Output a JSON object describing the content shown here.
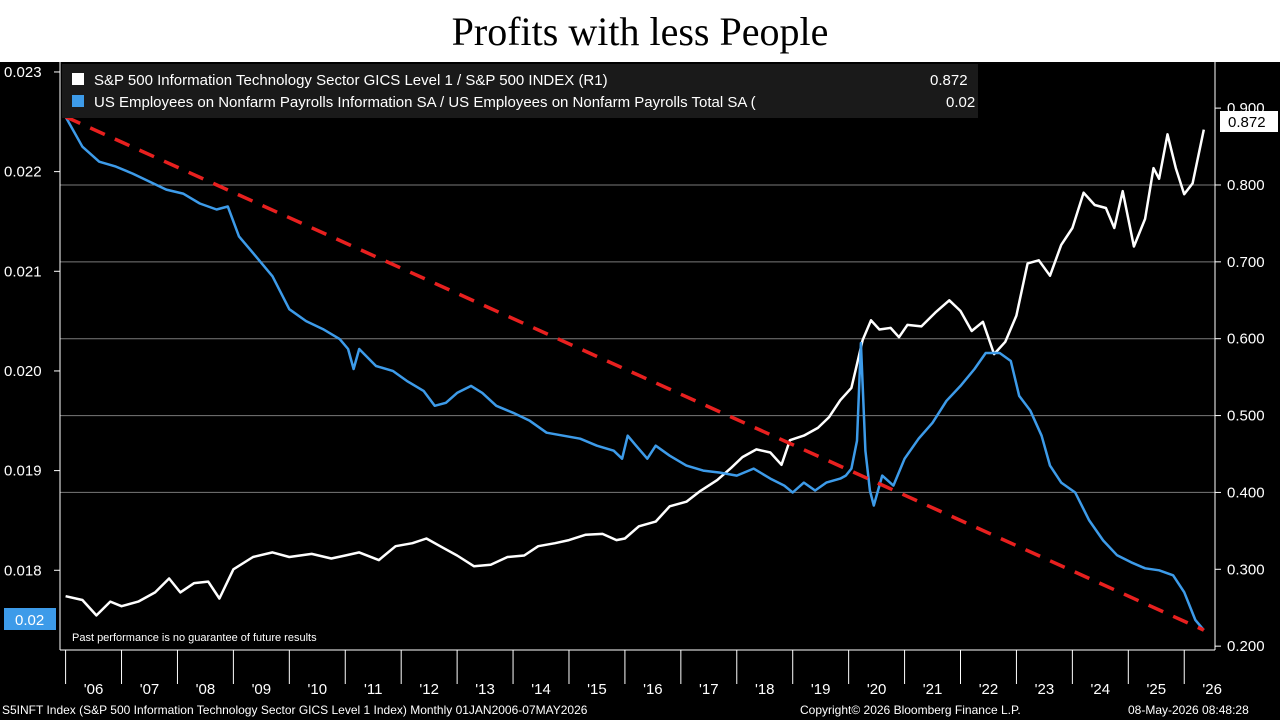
{
  "title": "Profits with less People",
  "colors": {
    "white_series": "#ffffff",
    "blue_series": "#3d9be9",
    "trend": "#e8201f",
    "grid": "#7a7a7a"
  },
  "legend": [
    {
      "label": "S&P 500 Information Technology Sector GICS Level 1 / S&P 500 INDEX (R1)",
      "value": "0.872"
    },
    {
      "label": "US Employees on Nonfarm Payrolls Information SA / US Employees on Nonfarm Payrolls Total SA (",
      "value": "0.02"
    }
  ],
  "left_tag": "0.02",
  "right_tag": "0.872",
  "note": "Past performance is no guarantee of future results",
  "footer": {
    "left": "S5INFT Index (S&P 500 Information Technology Sector GICS Level 1 Index) Monthly 01JAN2006-07MAY2026",
    "center": "Copyright© 2026 Bloomberg Finance L.P.",
    "right": "08-May-2026 08:48:28"
  },
  "chart_data": {
    "type": "line",
    "x_tick_labels": [
      "'06",
      "'07",
      "'08",
      "'09",
      "'10",
      "'11",
      "'12",
      "'13",
      "'14",
      "'15",
      "'16",
      "'17",
      "'18",
      "'19",
      "'20",
      "'21",
      "'22",
      "'23",
      "'24",
      "'25",
      "'26"
    ],
    "left_axis": {
      "ylim": [
        0.0172,
        0.0231
      ],
      "tick_labels": [
        "0.023",
        "0.022",
        "0.021",
        "0.020",
        "0.019",
        "0.018"
      ]
    },
    "right_axis": {
      "ylim": [
        0.195,
        0.96
      ],
      "tick_labels": [
        "0.900",
        "0.800",
        "0.700",
        "0.600",
        "0.500",
        "0.400",
        "0.300",
        "0.200"
      ]
    },
    "grid": true,
    "legend_position": "top-left",
    "series": [
      {
        "name": "S&P 500 Information Technology Sector GICS Level 1 / S&P 500 INDEX (R1)",
        "axis": "right",
        "points": [
          [
            2006.0,
            0.265
          ],
          [
            2006.3,
            0.26
          ],
          [
            2006.55,
            0.24
          ],
          [
            2006.8,
            0.258
          ],
          [
            2007.0,
            0.252
          ],
          [
            2007.3,
            0.258
          ],
          [
            2007.6,
            0.27
          ],
          [
            2007.85,
            0.288
          ],
          [
            2008.05,
            0.27
          ],
          [
            2008.3,
            0.282
          ],
          [
            2008.55,
            0.284
          ],
          [
            2008.75,
            0.262
          ],
          [
            2009.0,
            0.3
          ],
          [
            2009.35,
            0.316
          ],
          [
            2009.7,
            0.322
          ],
          [
            2010.0,
            0.316
          ],
          [
            2010.4,
            0.32
          ],
          [
            2010.75,
            0.314
          ],
          [
            2011.0,
            0.318
          ],
          [
            2011.25,
            0.322
          ],
          [
            2011.6,
            0.312
          ],
          [
            2011.9,
            0.33
          ],
          [
            2012.2,
            0.334
          ],
          [
            2012.45,
            0.34
          ],
          [
            2012.75,
            0.328
          ],
          [
            2013.0,
            0.318
          ],
          [
            2013.3,
            0.304
          ],
          [
            2013.6,
            0.306
          ],
          [
            2013.9,
            0.316
          ],
          [
            2014.2,
            0.318
          ],
          [
            2014.45,
            0.33
          ],
          [
            2014.75,
            0.334
          ],
          [
            2015.0,
            0.338
          ],
          [
            2015.3,
            0.345
          ],
          [
            2015.6,
            0.346
          ],
          [
            2015.85,
            0.338
          ],
          [
            2016.0,
            0.34
          ],
          [
            2016.25,
            0.356
          ],
          [
            2016.55,
            0.362
          ],
          [
            2016.8,
            0.382
          ],
          [
            2017.1,
            0.388
          ],
          [
            2017.35,
            0.402
          ],
          [
            2017.65,
            0.416
          ],
          [
            2017.9,
            0.432
          ],
          [
            2018.1,
            0.446
          ],
          [
            2018.35,
            0.456
          ],
          [
            2018.6,
            0.452
          ],
          [
            2018.8,
            0.436
          ],
          [
            2018.95,
            0.468
          ],
          [
            2019.2,
            0.474
          ],
          [
            2019.45,
            0.484
          ],
          [
            2019.65,
            0.498
          ],
          [
            2019.85,
            0.52
          ],
          [
            2020.05,
            0.536
          ],
          [
            2020.25,
            0.598
          ],
          [
            2020.4,
            0.624
          ],
          [
            2020.55,
            0.612
          ],
          [
            2020.75,
            0.614
          ],
          [
            2020.9,
            0.602
          ],
          [
            2021.05,
            0.618
          ],
          [
            2021.3,
            0.616
          ],
          [
            2021.55,
            0.634
          ],
          [
            2021.8,
            0.65
          ],
          [
            2022.0,
            0.636
          ],
          [
            2022.2,
            0.61
          ],
          [
            2022.4,
            0.622
          ],
          [
            2022.6,
            0.58
          ],
          [
            2022.8,
            0.596
          ],
          [
            2023.0,
            0.63
          ],
          [
            2023.2,
            0.698
          ],
          [
            2023.4,
            0.702
          ],
          [
            2023.6,
            0.682
          ],
          [
            2023.8,
            0.722
          ],
          [
            2024.0,
            0.744
          ],
          [
            2024.2,
            0.79
          ],
          [
            2024.4,
            0.774
          ],
          [
            2024.6,
            0.77
          ],
          [
            2024.75,
            0.744
          ],
          [
            2024.9,
            0.792
          ],
          [
            2025.1,
            0.72
          ],
          [
            2025.3,
            0.756
          ],
          [
            2025.45,
            0.822
          ],
          [
            2025.55,
            0.808
          ],
          [
            2025.7,
            0.866
          ],
          [
            2025.85,
            0.822
          ],
          [
            2026.0,
            0.788
          ],
          [
            2026.15,
            0.802
          ],
          [
            2026.35,
            0.872
          ]
        ]
      },
      {
        "name": "US Employees on Nonfarm Payrolls Information SA / US Employees on Nonfarm Payrolls Total SA (",
        "axis": "left",
        "points": [
          [
            2006.0,
            0.02255
          ],
          [
            2006.3,
            0.02225
          ],
          [
            2006.6,
            0.0221
          ],
          [
            2006.9,
            0.02205
          ],
          [
            2007.2,
            0.02198
          ],
          [
            2007.5,
            0.0219
          ],
          [
            2007.8,
            0.02182
          ],
          [
            2008.1,
            0.02178
          ],
          [
            2008.4,
            0.02168
          ],
          [
            2008.7,
            0.02162
          ],
          [
            2008.9,
            0.02165
          ],
          [
            2009.1,
            0.02135
          ],
          [
            2009.4,
            0.02115
          ],
          [
            2009.7,
            0.02095
          ],
          [
            2010.0,
            0.02062
          ],
          [
            2010.3,
            0.0205
          ],
          [
            2010.6,
            0.02042
          ],
          [
            2010.9,
            0.02032
          ],
          [
            2011.05,
            0.02022
          ],
          [
            2011.15,
            0.02002
          ],
          [
            2011.25,
            0.02022
          ],
          [
            2011.55,
            0.02005
          ],
          [
            2011.85,
            0.02
          ],
          [
            2012.1,
            0.0199
          ],
          [
            2012.4,
            0.0198
          ],
          [
            2012.6,
            0.01965
          ],
          [
            2012.8,
            0.01968
          ],
          [
            2013.0,
            0.01978
          ],
          [
            2013.25,
            0.01985
          ],
          [
            2013.45,
            0.01978
          ],
          [
            2013.7,
            0.01965
          ],
          [
            2014.0,
            0.01958
          ],
          [
            2014.3,
            0.0195
          ],
          [
            2014.6,
            0.01938
          ],
          [
            2014.9,
            0.01935
          ],
          [
            2015.2,
            0.01932
          ],
          [
            2015.5,
            0.01925
          ],
          [
            2015.8,
            0.0192
          ],
          [
            2015.95,
            0.01912
          ],
          [
            2016.05,
            0.01935
          ],
          [
            2016.2,
            0.01925
          ],
          [
            2016.4,
            0.01912
          ],
          [
            2016.55,
            0.01925
          ],
          [
            2016.8,
            0.01915
          ],
          [
            2017.1,
            0.01905
          ],
          [
            2017.4,
            0.019
          ],
          [
            2017.7,
            0.01898
          ],
          [
            2018.0,
            0.01895
          ],
          [
            2018.3,
            0.01902
          ],
          [
            2018.6,
            0.01892
          ],
          [
            2018.85,
            0.01885
          ],
          [
            2019.0,
            0.01878
          ],
          [
            2019.2,
            0.01888
          ],
          [
            2019.4,
            0.0188
          ],
          [
            2019.6,
            0.01888
          ],
          [
            2019.85,
            0.01892
          ],
          [
            2019.95,
            0.01895
          ],
          [
            2020.05,
            0.01902
          ],
          [
            2020.15,
            0.0193
          ],
          [
            2020.22,
            0.02028
          ],
          [
            2020.3,
            0.0192
          ],
          [
            2020.38,
            0.0188
          ],
          [
            2020.45,
            0.01865
          ],
          [
            2020.6,
            0.01895
          ],
          [
            2020.8,
            0.01885
          ],
          [
            2021.0,
            0.01912
          ],
          [
            2021.25,
            0.01932
          ],
          [
            2021.5,
            0.01948
          ],
          [
            2021.75,
            0.0197
          ],
          [
            2022.0,
            0.01985
          ],
          [
            2022.25,
            0.02002
          ],
          [
            2022.45,
            0.02018
          ],
          [
            2022.7,
            0.02018
          ],
          [
            2022.9,
            0.0201
          ],
          [
            2023.05,
            0.01975
          ],
          [
            2023.25,
            0.0196
          ],
          [
            2023.45,
            0.01935
          ],
          [
            2023.6,
            0.01905
          ],
          [
            2023.8,
            0.01888
          ],
          [
            2024.05,
            0.01878
          ],
          [
            2024.3,
            0.0185
          ],
          [
            2024.55,
            0.0183
          ],
          [
            2024.8,
            0.01815
          ],
          [
            2025.05,
            0.01808
          ],
          [
            2025.3,
            0.01802
          ],
          [
            2025.55,
            0.018
          ],
          [
            2025.8,
            0.01795
          ],
          [
            2026.0,
            0.01778
          ],
          [
            2026.2,
            0.0175
          ],
          [
            2026.35,
            0.0174
          ]
        ]
      },
      {
        "name": "",
        "axis": "left",
        "style": "dashed",
        "points": [
          [
            2006.0,
            0.02255
          ],
          [
            2026.35,
            0.0174
          ]
        ]
      }
    ]
  }
}
